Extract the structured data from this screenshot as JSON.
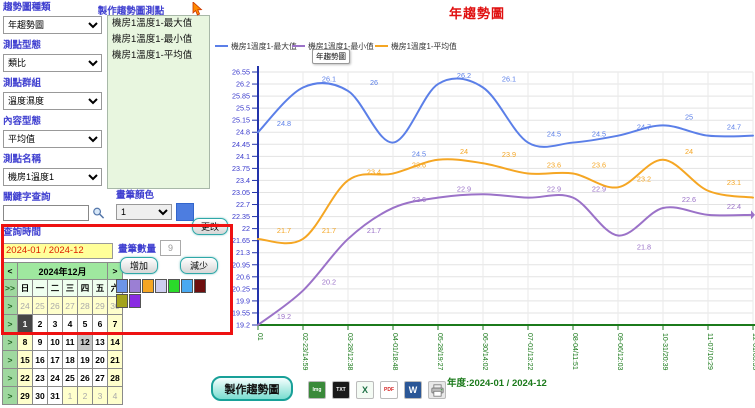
{
  "left_panel": {
    "fields": [
      {
        "label": "趨勢圖種類",
        "value": "年趨勢圖"
      },
      {
        "label": "測點型態",
        "value": "類比"
      },
      {
        "label": "測點群組",
        "value": "溫度濕度"
      },
      {
        "label": "內容型態",
        "value": "平均值"
      },
      {
        "label": "測點名稱",
        "value": "機房1溫度1"
      }
    ],
    "keyword_label": "關鍵字查詢",
    "keyword_value": "",
    "query_time_label": "查詢時間",
    "date_range_value": "2024-01 / 2024-12"
  },
  "calendar": {
    "prev": "<",
    "next": ">",
    "title": "2024年12月",
    "expand_all": ">>",
    "expand_row": ">",
    "day_headers": [
      "日",
      "一",
      "二",
      "三",
      "四",
      "五",
      "六"
    ],
    "weeks": [
      [
        "24",
        "25",
        "26",
        "27",
        "28",
        "29",
        "30"
      ],
      [
        "1",
        "2",
        "3",
        "4",
        "5",
        "6",
        "7"
      ],
      [
        "8",
        "9",
        "10",
        "11",
        "12",
        "13",
        "14"
      ],
      [
        "15",
        "16",
        "17",
        "18",
        "19",
        "20",
        "21"
      ],
      [
        "22",
        "23",
        "24",
        "25",
        "26",
        "27",
        "28"
      ],
      [
        "29",
        "30",
        "31",
        "1",
        "2",
        "3",
        "4"
      ]
    ],
    "selected_cell": [
      1,
      0
    ],
    "today_cell": [
      2,
      4
    ],
    "other_month": {
      "0": [
        0,
        1,
        2,
        3,
        4,
        5,
        6
      ],
      "5": [
        3,
        4,
        5,
        6
      ]
    }
  },
  "points_panel": {
    "header": "製作趨勢圖測點",
    "items": [
      "機房1溫度1-最大值",
      "機房1溫度1-最小值",
      "機房1溫度1-平均值"
    ]
  },
  "pen_panel": {
    "color_label": "畫筆顏色",
    "color_value": "1",
    "current_color": "#4D7DE0",
    "change_button": "更改",
    "count_label": "畫筆數量",
    "count_value": "9",
    "add_button": "增加",
    "remove_button": "減少",
    "palette": [
      "#6C95E8",
      "#9B7FD4",
      "#F5A623",
      "#CDCDF0",
      "#2ADB2A",
      "#49A9F0",
      "#6E0E0E",
      "#A3A31C"
    ],
    "palette_row2": [
      "#8A2BE2"
    ]
  },
  "actions": {
    "make_button": "製作趨勢圖",
    "export_icons": [
      {
        "name": "img",
        "label": "Img",
        "bg": "#3A8A3A",
        "fg": "#FFFFFF"
      },
      {
        "name": "txt",
        "label": "TXT",
        "bg": "#1A1A1A",
        "fg": "#FFFFFF"
      },
      {
        "name": "excel",
        "label": "X",
        "bg": "#F4FBF4",
        "fg": "#1E7145"
      },
      {
        "name": "pdf",
        "label": "PDF",
        "bg": "#FFFFFF",
        "fg": "#D42020"
      },
      {
        "name": "word",
        "label": "W",
        "bg": "#2B5797",
        "fg": "#FFFFFF"
      },
      {
        "name": "print",
        "label": "",
        "bg": "#E8E8E8",
        "fg": "#555555"
      }
    ]
  },
  "chart_data": {
    "type": "line",
    "title": "年趨勢圖",
    "tooltip": "年趨勢圖",
    "footer": "年度:2024-01 / 2024-12",
    "xlabel": "",
    "ylabel": "",
    "grid": true,
    "legend_position": "top",
    "ylim": [
      19.2,
      26.55
    ],
    "ytick_step": 0.35,
    "ytick_labels": [
      "26.55",
      "26.2",
      "25.85",
      "25.5",
      "25.15",
      "24.8",
      "24.45",
      "24.1",
      "23.75",
      "23.4",
      "23.05",
      "22.7",
      "22.35",
      "22",
      "21.65",
      "21.3",
      "20.95",
      "20.6",
      "20.25",
      "19.9",
      "19.55",
      "19.2"
    ],
    "x_categories": [
      "01",
      "02-23/14:59",
      "03-28/12:38",
      "04-01/18:48",
      "05-28/19:27",
      "06-30/14:02",
      "07-01/13:22",
      "08-04/11:51",
      "09-06/12:03",
      "10-31/20:39",
      "11-07/10:29",
      "12-01/05:39"
    ],
    "axis_colors": {
      "y_axis": "#2233AA",
      "x_axis": "#1B7A1B",
      "y_labels": "#3A3ACC",
      "x_labels": "#1B7A1B"
    },
    "series": [
      {
        "name": "機房1溫度1-最大值",
        "color": "#5B7FE8",
        "values": [
          24.8,
          26.1,
          26.0,
          24.5,
          26.2,
          26.1,
          24.5,
          24.5,
          24.7,
          25.0,
          24.7,
          24.7
        ],
        "point_labels": [
          "24.8",
          "26.1",
          "26",
          "24.5",
          "26.2",
          "26.1",
          "24.5",
          "24.5",
          "24.7",
          "25",
          "24.7",
          ""
        ],
        "label_dy": {
          "3": 14
        }
      },
      {
        "name": "機房1溫度1-最小值",
        "color": "#9B72C8",
        "values": [
          19.2,
          20.2,
          21.7,
          22.6,
          22.9,
          23.0,
          22.9,
          22.9,
          21.8,
          22.6,
          22.4,
          22.4
        ],
        "point_labels": [
          "19.2",
          "20.2",
          "21.7",
          "22.6",
          "22.9",
          "",
          "22.9",
          "22.9",
          "21.8",
          "22.6",
          "22.4",
          ""
        ],
        "label_dy": {
          "8": 14
        },
        "end_arrow": true
      },
      {
        "name": "機房1溫度1-平均值",
        "color": "#F5A623",
        "values": [
          21.7,
          21.7,
          23.4,
          23.6,
          24.0,
          23.9,
          23.6,
          23.6,
          23.2,
          24.0,
          23.1,
          22.9
        ],
        "point_labels": [
          "21.7",
          "21.7",
          "23.4",
          "23.6",
          "24",
          "23.9",
          "23.6",
          "23.6",
          "23.2",
          "24",
          "23.1",
          ""
        ]
      }
    ]
  }
}
